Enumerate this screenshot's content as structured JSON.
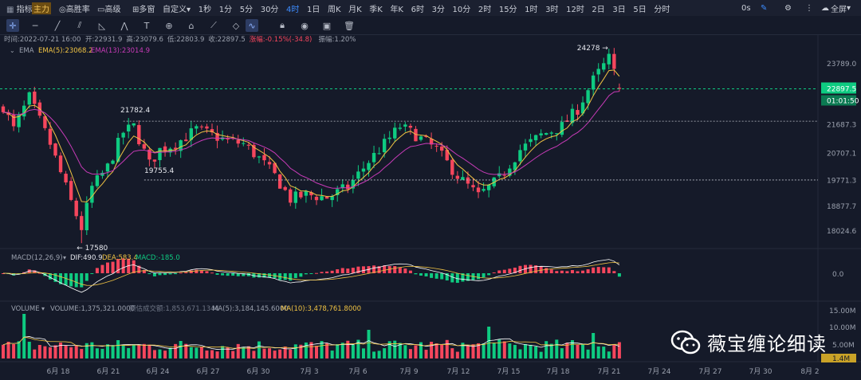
{
  "toolbar": {
    "items": [
      "指标",
      "主力",
      "高胜率",
      "高级",
      "多窗",
      "自定义",
      "1秒",
      "1分",
      "5分",
      "30分",
      "4时",
      "1日",
      "周K",
      "月K",
      "季K",
      "年K",
      "6时",
      "3分",
      "10分",
      "2时",
      "15分",
      "1时",
      "3时",
      "12时",
      "2日",
      "3日",
      "5日",
      "分时"
    ],
    "active": "4时",
    "right_seconds": "0s",
    "fullscreen_label": "全屏"
  },
  "drawing_tools": [
    "crosshair-icon",
    "horizontal-line-icon",
    "trend-line-icon",
    "channel-icon",
    "fibonacci-icon",
    "wave-icon",
    "text-icon",
    "measure-icon",
    "ruler-icon",
    "magnet-icon",
    "lock-icon",
    "eye-icon",
    "trash-icon"
  ],
  "colors": {
    "up": "#0ecb81",
    "down": "#f6465d",
    "ema5": "#f0c343",
    "ema13": "#c83bb8",
    "dif": "#ffffff",
    "dea": "#f0c343",
    "ma10": "#f0c343",
    "accent": "#3d8cff",
    "price_tag": "#0ecb81"
  },
  "info_line": {
    "time_label": "时间:2022-07-21 16:00",
    "open": "开:22931.9",
    "high": "高:23079.6",
    "low": "低:22803.9",
    "close": "收:22897.5",
    "change": "涨幅:-0.15%(-34.8)",
    "amplitude": "振幅:1.20%"
  },
  "ema_legend": {
    "name": "EMA",
    "ema5": "EMA(5):23068.2",
    "ema13": "EMA(13):23014.9"
  },
  "macd_legend": {
    "name": "MACD(12,26,9)",
    "dif": "DIF:490.9",
    "dea": "DEA:583.4",
    "macd": "MACD:-185.0"
  },
  "volume_legend": {
    "name": "VOLUME",
    "volume": "VOLUME:1,375,321.0000",
    "est": "预估成交额:1,853,671.1344",
    "ma5": "MA(5):3,184,145.6000",
    "ma10": "MA(10):3,478,761.8000"
  },
  "price_axis": [
    "23789.0",
    "21687.3",
    "20707.1",
    "19771.3",
    "18877.7",
    "18024.6"
  ],
  "current_price": "22897.5",
  "countdown": "01:01:50",
  "annotations": [
    "24278",
    "21782.4",
    "19755.4",
    "17580"
  ],
  "macd_axis": [
    "0.0"
  ],
  "volume_axis": [
    "15.00M",
    "10.00M",
    "5.00M"
  ],
  "volume_tag": "1.4M",
  "x_axis": [
    "6月 18",
    "6月 21",
    "6月 24",
    "6月 27",
    "6月 30",
    "7月 3",
    "7月 6",
    "7月 9",
    "7月 12",
    "7月 15",
    "7月 18",
    "7月 21",
    "7月 24",
    "7月 27",
    "7月 30",
    "8月 2"
  ],
  "watermark": "薇宝缠论细读",
  "chart_data": {
    "type": "candlestick",
    "interval": "4时",
    "annotated_levels": {
      "high": 24278,
      "resistance": 21782.4,
      "support": 19755.4,
      "low": 17580
    },
    "price_ylim": [
      17580,
      24278
    ],
    "series": [
      {
        "name": "EMA(5)",
        "last": 23068.2
      },
      {
        "name": "EMA(13)",
        "last": 23014.9
      },
      {
        "name": "DIF",
        "last": 490.9
      },
      {
        "name": "DEA",
        "last": 583.4
      },
      {
        "name": "MACD",
        "last": -185.0
      },
      {
        "name": "VOLUME",
        "last": 1375321.0
      },
      {
        "name": "MA(5)",
        "last": 3184145.6
      },
      {
        "name": "MA(10)",
        "last": 3478761.8
      }
    ],
    "last_bar": {
      "time": "2022-07-21 16:00",
      "open": 22931.9,
      "high": 23079.6,
      "low": 22803.9,
      "close": 22897.5
    }
  }
}
